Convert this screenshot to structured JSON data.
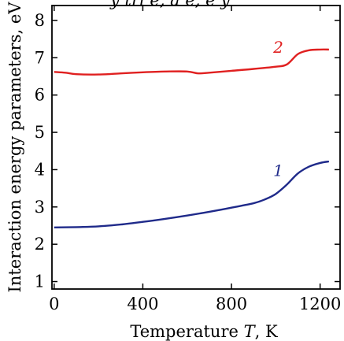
{
  "top_cropped_text": "y tri e, a e, e   y",
  "chart_data": {
    "type": "line",
    "xlabel_prefix": "Temperature ",
    "xlabel_var": "T",
    "xlabel_suffix": ", K",
    "ylabel": "Interaction energy parameters, eV",
    "xlim": [
      -10,
      1290
    ],
    "ylim": [
      0.8,
      8.4
    ],
    "xticks": [
      0,
      400,
      800,
      1200
    ],
    "yticks": [
      1,
      2,
      3,
      4,
      5,
      6,
      7,
      8
    ],
    "grid": false,
    "legend": "none",
    "series": [
      {
        "label": "1",
        "color": "#1f2a8a",
        "x": [
          0,
          100,
          200,
          300,
          400,
          500,
          600,
          700,
          800,
          900,
          950,
          1000,
          1050,
          1100,
          1150,
          1200,
          1240
        ],
        "y": [
          2.45,
          2.46,
          2.48,
          2.53,
          2.6,
          2.68,
          2.77,
          2.87,
          2.98,
          3.1,
          3.2,
          3.35,
          3.6,
          3.9,
          4.08,
          4.18,
          4.22
        ]
      },
      {
        "label": "2",
        "color": "#e02020",
        "x": [
          0,
          50,
          100,
          200,
          300,
          400,
          500,
          600,
          650,
          700,
          800,
          900,
          1000,
          1050,
          1100,
          1150,
          1200,
          1240
        ],
        "y": [
          6.62,
          6.6,
          6.56,
          6.55,
          6.58,
          6.61,
          6.63,
          6.63,
          6.58,
          6.6,
          6.65,
          6.7,
          6.76,
          6.82,
          7.1,
          7.2,
          7.22,
          7.22
        ]
      }
    ],
    "label_positions_data": [
      {
        "series": 0,
        "x": 1010,
        "y": 3.75
      },
      {
        "series": 1,
        "x": 1010,
        "y": 7.05
      }
    ]
  }
}
